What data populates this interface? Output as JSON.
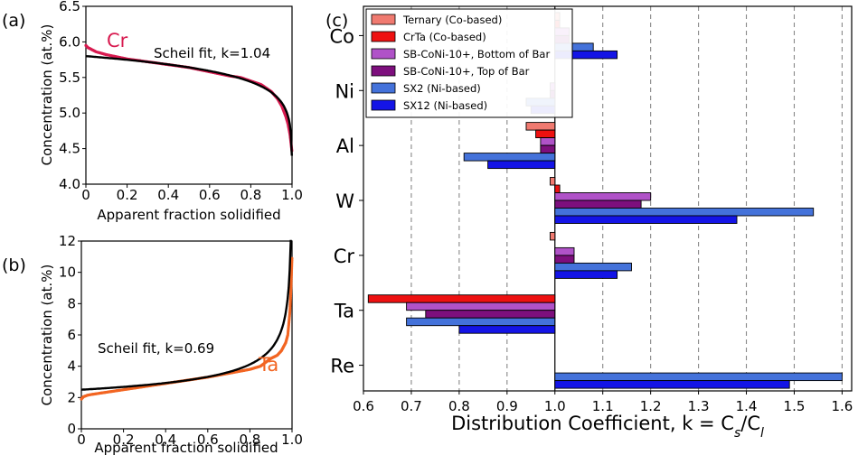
{
  "panels": {
    "a": "(a)",
    "b": "(b)",
    "c": "(c)"
  },
  "chart_data": [
    {
      "type": "scatter",
      "panel": "(a)",
      "xlabel": "Apparent fraction solidified",
      "ylabel": "Concentration (at.%)",
      "xlim": [
        0,
        1
      ],
      "ylim": [
        4.0,
        6.5
      ],
      "xticks": [
        "0",
        "0.2",
        "0.4",
        "0.6",
        "0.8",
        "1.0"
      ],
      "yticks": [
        "4.0",
        "4.5",
        "5.0",
        "5.5",
        "6.0",
        "6.5"
      ],
      "series_label": "Cr",
      "series_color": "#d81b50",
      "fit_label": "Scheil fit, k=1.04",
      "k": 1.04,
      "c0": 5.8,
      "measured": [
        [
          0.0,
          5.95
        ],
        [
          0.01,
          5.92
        ],
        [
          0.03,
          5.89
        ],
        [
          0.05,
          5.86
        ],
        [
          0.1,
          5.82
        ],
        [
          0.15,
          5.79
        ],
        [
          0.2,
          5.76
        ],
        [
          0.3,
          5.72
        ],
        [
          0.4,
          5.68
        ],
        [
          0.5,
          5.64
        ],
        [
          0.6,
          5.58
        ],
        [
          0.7,
          5.52
        ],
        [
          0.75,
          5.5
        ],
        [
          0.8,
          5.45
        ],
        [
          0.85,
          5.4
        ],
        [
          0.9,
          5.3
        ],
        [
          0.93,
          5.2
        ],
        [
          0.95,
          5.1
        ],
        [
          0.97,
          4.95
        ],
        [
          0.98,
          4.85
        ],
        [
          0.99,
          4.7
        ],
        [
          1.0,
          4.45
        ]
      ]
    },
    {
      "type": "scatter",
      "panel": "(b)",
      "xlabel": "Apparent fraction solidified",
      "ylabel": "Concentration (at.%)",
      "xlim": [
        0,
        1
      ],
      "ylim": [
        0,
        12
      ],
      "xticks": [
        "0",
        "0.2",
        "0.4",
        "0.6",
        "0.8",
        "1.0"
      ],
      "yticks": [
        "0",
        "2",
        "4",
        "6",
        "8",
        "10",
        "12"
      ],
      "series_label": "Ta",
      "series_color": "#f26522",
      "fit_label": "Scheil fit, k=0.69",
      "k": 0.69,
      "c0": 2.5,
      "measured": [
        [
          0.0,
          1.9
        ],
        [
          0.01,
          2.05
        ],
        [
          0.03,
          2.15
        ],
        [
          0.05,
          2.2
        ],
        [
          0.1,
          2.3
        ],
        [
          0.2,
          2.5
        ],
        [
          0.3,
          2.7
        ],
        [
          0.4,
          2.9
        ],
        [
          0.5,
          3.1
        ],
        [
          0.6,
          3.3
        ],
        [
          0.7,
          3.55
        ],
        [
          0.8,
          3.8
        ],
        [
          0.85,
          4.0
        ],
        [
          0.88,
          4.3
        ],
        [
          0.9,
          4.5
        ],
        [
          0.93,
          4.7
        ],
        [
          0.95,
          5.0
        ],
        [
          0.97,
          5.5
        ],
        [
          0.98,
          6.0
        ],
        [
          0.99,
          7.5
        ],
        [
          0.995,
          9.0
        ],
        [
          1.0,
          11.0
        ]
      ]
    },
    {
      "type": "bar",
      "orientation": "horizontal",
      "panel": "(c)",
      "title": "",
      "xlabel_parts": [
        "Distribution Coefficient, k = C",
        "s",
        "/C",
        "l"
      ],
      "xlim": [
        0.6,
        1.62
      ],
      "xticks": [
        0.6,
        0.7,
        0.8,
        0.9,
        1.0,
        1.1,
        1.2,
        1.3,
        1.4,
        1.5,
        1.6
      ],
      "xtick_labels": [
        "0.6",
        "0.7",
        "0.8",
        "0.9",
        "1.0",
        "1.1",
        "1.2",
        "1.3",
        "1.4",
        "1.5",
        "1.6"
      ],
      "baseline": 1.0,
      "grid": "vertical dashed",
      "legend_position": "top-left",
      "categories": [
        "Co",
        "Ni",
        "Al",
        "W",
        "Cr",
        "Ta",
        "Re"
      ],
      "series": [
        {
          "name": "Ternary (Co-based)",
          "color": "#f07a70",
          "values": [
            1.01,
            null,
            0.94,
            0.99,
            0.99,
            null,
            null
          ]
        },
        {
          "name": "CrTa (Co-based)",
          "color": "#ee1111",
          "values": [
            1.01,
            null,
            0.96,
            1.01,
            null,
            0.61,
            null
          ]
        },
        {
          "name": "SB-CoNi-10+, Bottom of Bar",
          "color": "#b052c8",
          "values": [
            1.03,
            0.99,
            0.97,
            1.2,
            1.04,
            0.69,
            null
          ]
        },
        {
          "name": "SB-CoNi-10+, Top of Bar",
          "color": "#7d0f7d",
          "values": [
            1.03,
            0.99,
            0.97,
            1.18,
            1.04,
            0.73,
            null
          ]
        },
        {
          "name": "SX2 (Ni-based)",
          "color": "#4472da",
          "values": [
            1.08,
            0.94,
            0.81,
            1.54,
            1.16,
            0.69,
            1.6
          ]
        },
        {
          "name": "SX12 (Ni-based)",
          "color": "#1414e6",
          "values": [
            1.13,
            0.95,
            0.86,
            1.38,
            1.13,
            0.8,
            1.49
          ]
        }
      ]
    }
  ]
}
